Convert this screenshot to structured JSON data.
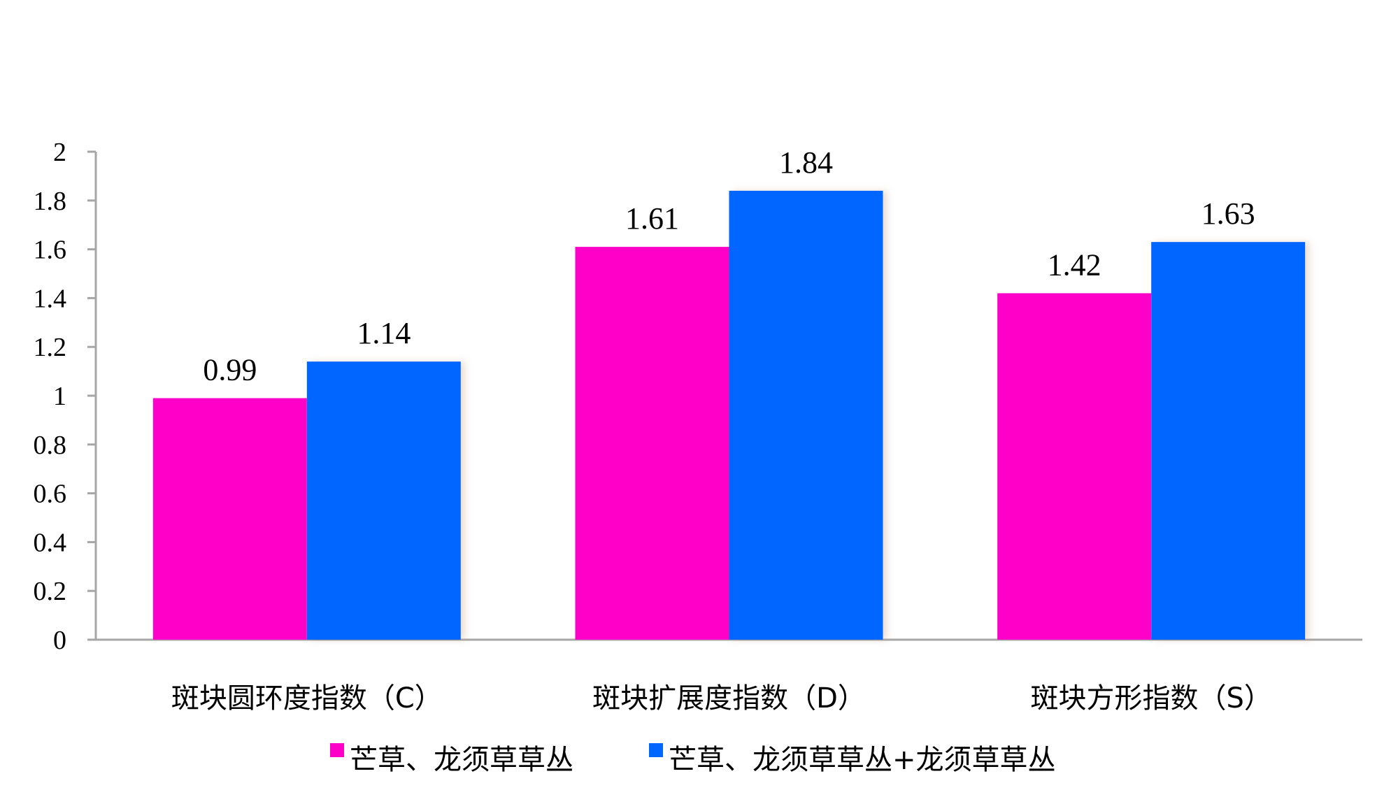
{
  "chart_data": {
    "type": "bar",
    "title": "",
    "xlabel": "",
    "ylabel": "",
    "ylim": [
      0,
      2
    ],
    "yticks": [
      "0",
      "0.2",
      "0.4",
      "0.6",
      "0.8",
      "1",
      "1.2",
      "1.4",
      "1.6",
      "1.8",
      "2"
    ],
    "grid": false,
    "categories": [
      "斑块圆环度指数（C）",
      "斑块扩展度指数（D）",
      "斑块方形指数（S）"
    ],
    "series": [
      {
        "name": "芒草、龙须草草丛",
        "color": "#ff00c8",
        "values": [
          0.99,
          1.61,
          1.42
        ],
        "labels": [
          "0.99",
          "1.61",
          "1.42"
        ]
      },
      {
        "name": "芒草、龙须草草丛+龙须草草丛",
        "color": "#0066ff",
        "values": [
          1.14,
          1.84,
          1.63
        ],
        "labels": [
          "1.14",
          "1.84",
          "1.63"
        ]
      }
    ],
    "legend_position": "bottom"
  }
}
